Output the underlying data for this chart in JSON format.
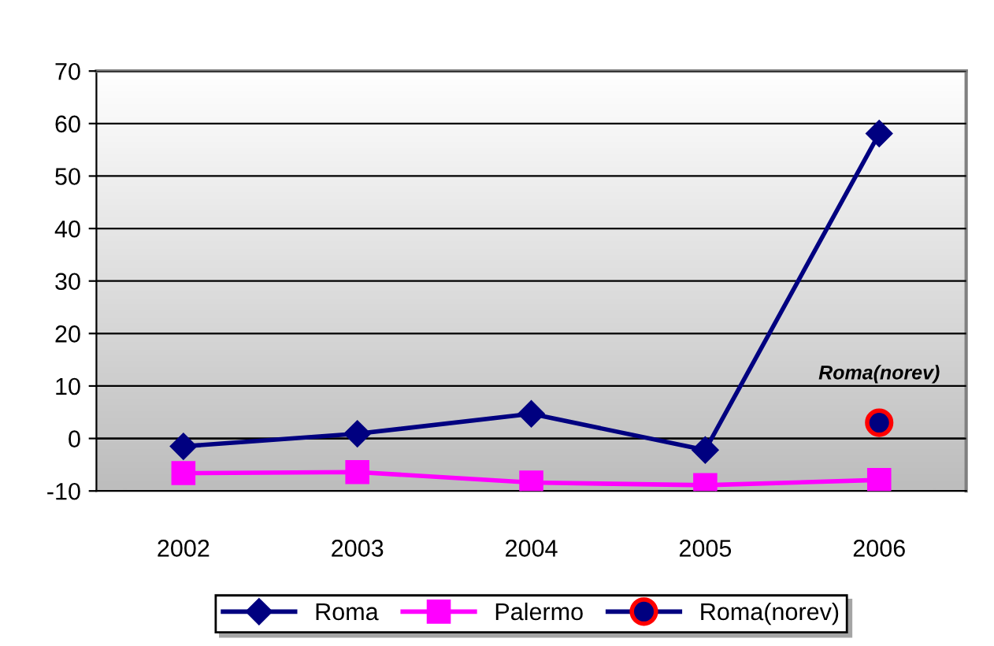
{
  "chart_data": {
    "type": "line",
    "categories": [
      "2002",
      "2003",
      "2004",
      "2005",
      "2006"
    ],
    "series": [
      {
        "name": "Roma",
        "color": "#000080",
        "marker": "diamond",
        "values": [
          -1.5,
          0.9,
          4.7,
          -2.2,
          58.1
        ]
      },
      {
        "name": "Palermo",
        "color": "#ff00ff",
        "marker": "square",
        "values": [
          -6.6,
          -6.4,
          -8.4,
          -8.9,
          -7.9
        ]
      },
      {
        "name": "Roma(norev)",
        "color": "#000080",
        "marker": "circle",
        "values": [
          null,
          null,
          null,
          null,
          3.0
        ]
      }
    ],
    "annotations": [
      {
        "text": "Roma(norev)",
        "x": "2006",
        "y": 3.0
      }
    ],
    "ylim": [
      -10,
      70
    ],
    "yticks": [
      -10,
      0,
      10,
      20,
      30,
      40,
      50,
      60,
      70
    ],
    "grid": "y",
    "legend": "bottom"
  }
}
